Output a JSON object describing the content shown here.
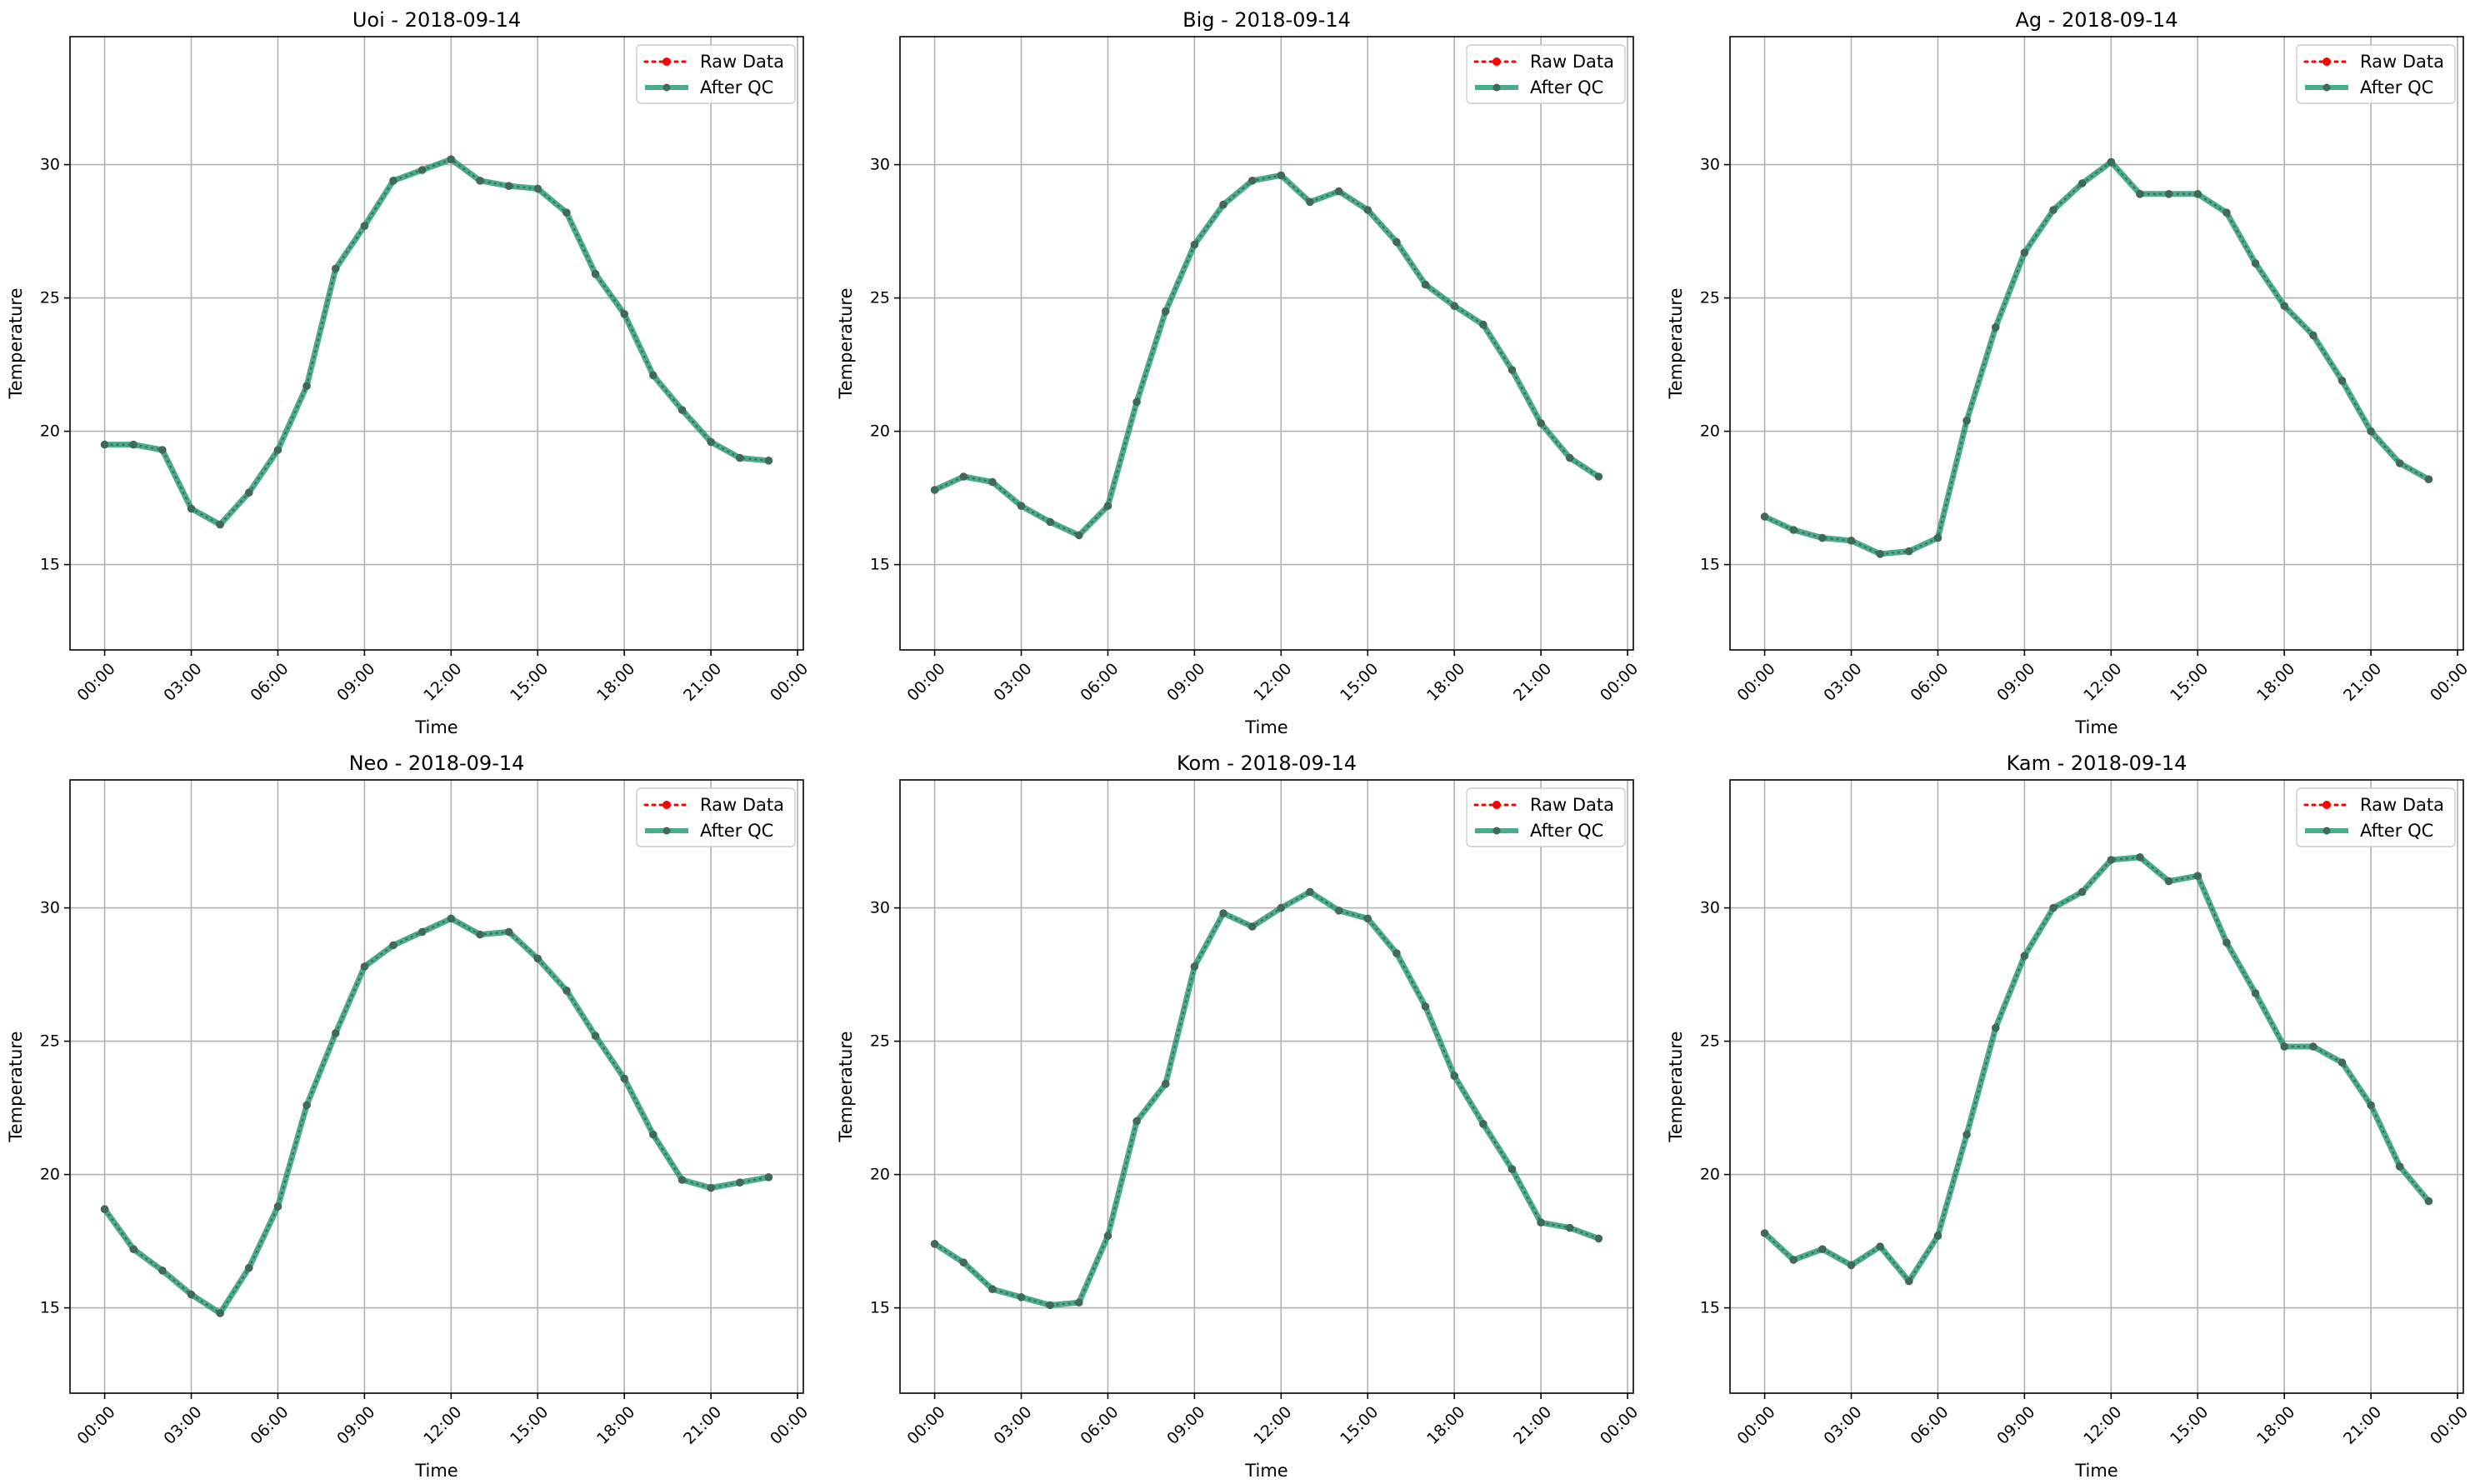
{
  "figure_date": "2018-09-14",
  "colors": {
    "raw": "#ff0000",
    "qc": "#2a9d78",
    "overlap": "#406a55",
    "grid": "#b0b0b0"
  },
  "legend": {
    "raw_label": "Raw Data",
    "qc_label": "After QC",
    "placement": "top-right"
  },
  "chart_data": [
    {
      "type": "line",
      "title": "Uoi - 2018-09-14",
      "xlabel": "Time",
      "ylabel": "Temperature",
      "xlim": [
        "2018-09-13 22:48",
        "2018-09-15 00:12"
      ],
      "ylim": [
        11.8,
        34.8
      ],
      "grid": true,
      "x_tick_labels": [
        "00:00",
        "03:00",
        "06:00",
        "09:00",
        "12:00",
        "15:00",
        "18:00",
        "21:00",
        "00:00"
      ],
      "y_tick_labels": [
        "15",
        "20",
        "25",
        "30"
      ],
      "x": [
        "00:00",
        "01:00",
        "02:00",
        "03:00",
        "04:00",
        "05:00",
        "06:00",
        "07:00",
        "08:00",
        "09:00",
        "10:00",
        "11:00",
        "12:00",
        "13:00",
        "14:00",
        "15:00",
        "16:00",
        "17:00",
        "18:00",
        "19:00",
        "20:00",
        "21:00",
        "22:00",
        "23:00"
      ],
      "series": [
        {
          "name": "Raw Data",
          "values": [
            19.5,
            19.5,
            19.3,
            17.1,
            16.5,
            17.7,
            19.3,
            21.7,
            26.1,
            27.7,
            29.4,
            29.8,
            30.2,
            29.4,
            29.2,
            29.1,
            28.2,
            25.9,
            24.4,
            22.1,
            20.8,
            19.6,
            19.0,
            18.9
          ]
        },
        {
          "name": "After QC",
          "values": [
            19.5,
            19.5,
            19.3,
            17.1,
            16.5,
            17.7,
            19.3,
            21.7,
            26.1,
            27.7,
            29.4,
            29.8,
            30.2,
            29.4,
            29.2,
            29.1,
            28.2,
            25.9,
            24.4,
            22.1,
            20.8,
            19.6,
            19.0,
            18.9
          ]
        }
      ]
    },
    {
      "type": "line",
      "title": "Big - 2018-09-14",
      "xlabel": "Time",
      "ylabel": "Temperature",
      "xlim": [
        "2018-09-13 22:48",
        "2018-09-15 00:12"
      ],
      "ylim": [
        11.8,
        34.8
      ],
      "grid": true,
      "x_tick_labels": [
        "00:00",
        "03:00",
        "06:00",
        "09:00",
        "12:00",
        "15:00",
        "18:00",
        "21:00",
        "00:00"
      ],
      "y_tick_labels": [
        "15",
        "20",
        "25",
        "30"
      ],
      "x": [
        "00:00",
        "01:00",
        "02:00",
        "03:00",
        "04:00",
        "05:00",
        "06:00",
        "07:00",
        "08:00",
        "09:00",
        "10:00",
        "11:00",
        "12:00",
        "13:00",
        "14:00",
        "15:00",
        "16:00",
        "17:00",
        "18:00",
        "19:00",
        "20:00",
        "21:00",
        "22:00",
        "23:00"
      ],
      "series": [
        {
          "name": "Raw Data",
          "values": [
            17.8,
            18.3,
            18.1,
            17.2,
            16.6,
            16.1,
            17.2,
            21.1,
            24.5,
            27.0,
            28.5,
            29.4,
            29.6,
            28.6,
            29.0,
            28.3,
            27.1,
            25.5,
            24.7,
            24.0,
            22.3,
            20.3,
            19.0,
            18.3
          ]
        },
        {
          "name": "After QC",
          "values": [
            17.8,
            18.3,
            18.1,
            17.2,
            16.6,
            16.1,
            17.2,
            21.1,
            24.5,
            27.0,
            28.5,
            29.4,
            29.6,
            28.6,
            29.0,
            28.3,
            27.1,
            25.5,
            24.7,
            24.0,
            22.3,
            20.3,
            19.0,
            18.3
          ]
        }
      ]
    },
    {
      "type": "line",
      "title": "Ag - 2018-09-14",
      "xlabel": "Time",
      "ylabel": "Temperature",
      "xlim": [
        "2018-09-13 22:48",
        "2018-09-15 00:12"
      ],
      "ylim": [
        11.8,
        34.8
      ],
      "grid": true,
      "x_tick_labels": [
        "00:00",
        "03:00",
        "06:00",
        "09:00",
        "12:00",
        "15:00",
        "18:00",
        "21:00",
        "00:00"
      ],
      "y_tick_labels": [
        "15",
        "20",
        "25",
        "30"
      ],
      "x": [
        "00:00",
        "01:00",
        "02:00",
        "03:00",
        "04:00",
        "05:00",
        "06:00",
        "07:00",
        "08:00",
        "09:00",
        "10:00",
        "11:00",
        "12:00",
        "13:00",
        "14:00",
        "15:00",
        "16:00",
        "17:00",
        "18:00",
        "19:00",
        "20:00",
        "21:00",
        "22:00",
        "23:00"
      ],
      "series": [
        {
          "name": "Raw Data",
          "values": [
            16.8,
            16.3,
            16.0,
            15.9,
            15.4,
            15.5,
            16.0,
            20.4,
            23.9,
            26.7,
            28.3,
            29.3,
            30.1,
            28.9,
            28.9,
            28.9,
            28.2,
            26.3,
            24.7,
            23.6,
            21.9,
            20.0,
            18.8,
            18.2
          ]
        },
        {
          "name": "After QC",
          "values": [
            16.8,
            16.3,
            16.0,
            15.9,
            15.4,
            15.5,
            16.0,
            20.4,
            23.9,
            26.7,
            28.3,
            29.3,
            30.1,
            28.9,
            28.9,
            28.9,
            28.2,
            26.3,
            24.7,
            23.6,
            21.9,
            20.0,
            18.8,
            18.2
          ]
        }
      ]
    },
    {
      "type": "line",
      "title": "Neo - 2018-09-14",
      "xlabel": "Time",
      "ylabel": "Temperature",
      "xlim": [
        "2018-09-13 22:48",
        "2018-09-15 00:12"
      ],
      "ylim": [
        11.8,
        34.8
      ],
      "grid": true,
      "x_tick_labels": [
        "00:00",
        "03:00",
        "06:00",
        "09:00",
        "12:00",
        "15:00",
        "18:00",
        "21:00",
        "00:00"
      ],
      "y_tick_labels": [
        "15",
        "20",
        "25",
        "30"
      ],
      "x": [
        "00:00",
        "01:00",
        "02:00",
        "03:00",
        "04:00",
        "05:00",
        "06:00",
        "07:00",
        "08:00",
        "09:00",
        "10:00",
        "11:00",
        "12:00",
        "13:00",
        "14:00",
        "15:00",
        "16:00",
        "17:00",
        "18:00",
        "19:00",
        "20:00",
        "21:00",
        "22:00",
        "23:00"
      ],
      "series": [
        {
          "name": "Raw Data",
          "values": [
            18.7,
            17.2,
            16.4,
            15.5,
            14.8,
            16.5,
            18.8,
            22.6,
            25.3,
            27.8,
            28.6,
            29.1,
            29.6,
            29.0,
            29.1,
            28.1,
            26.9,
            25.2,
            23.6,
            21.5,
            19.8,
            19.5,
            19.7,
            19.9
          ]
        },
        {
          "name": "After QC",
          "values": [
            18.7,
            17.2,
            16.4,
            15.5,
            14.8,
            16.5,
            18.8,
            22.6,
            25.3,
            27.8,
            28.6,
            29.1,
            29.6,
            29.0,
            29.1,
            28.1,
            26.9,
            25.2,
            23.6,
            21.5,
            19.8,
            19.5,
            19.7,
            19.9
          ]
        }
      ]
    },
    {
      "type": "line",
      "title": "Kom - 2018-09-14",
      "xlabel": "Time",
      "ylabel": "Temperature",
      "xlim": [
        "2018-09-13 22:48",
        "2018-09-15 00:12"
      ],
      "ylim": [
        11.8,
        34.8
      ],
      "grid": true,
      "x_tick_labels": [
        "00:00",
        "03:00",
        "06:00",
        "09:00",
        "12:00",
        "15:00",
        "18:00",
        "21:00",
        "00:00"
      ],
      "y_tick_labels": [
        "15",
        "20",
        "25",
        "30"
      ],
      "x": [
        "00:00",
        "01:00",
        "02:00",
        "03:00",
        "04:00",
        "05:00",
        "06:00",
        "07:00",
        "08:00",
        "09:00",
        "10:00",
        "11:00",
        "12:00",
        "13:00",
        "14:00",
        "15:00",
        "16:00",
        "17:00",
        "18:00",
        "19:00",
        "20:00",
        "21:00",
        "22:00",
        "23:00"
      ],
      "series": [
        {
          "name": "Raw Data",
          "values": [
            17.4,
            16.7,
            15.7,
            15.4,
            15.1,
            15.2,
            17.7,
            22.0,
            23.4,
            27.8,
            29.8,
            29.3,
            30.0,
            30.6,
            29.9,
            29.6,
            28.3,
            26.3,
            23.7,
            21.9,
            20.2,
            18.2,
            18.0,
            17.6
          ]
        },
        {
          "name": "After QC",
          "values": [
            17.4,
            16.7,
            15.7,
            15.4,
            15.1,
            15.2,
            17.7,
            22.0,
            23.4,
            27.8,
            29.8,
            29.3,
            30.0,
            30.6,
            29.9,
            29.6,
            28.3,
            26.3,
            23.7,
            21.9,
            20.2,
            18.2,
            18.0,
            17.6
          ]
        }
      ]
    },
    {
      "type": "line",
      "title": "Kam - 2018-09-14",
      "xlabel": "Time",
      "ylabel": "Temperature",
      "xlim": [
        "2018-09-13 22:48",
        "2018-09-15 00:12"
      ],
      "ylim": [
        11.8,
        34.8
      ],
      "grid": true,
      "x_tick_labels": [
        "00:00",
        "03:00",
        "06:00",
        "09:00",
        "12:00",
        "15:00",
        "18:00",
        "21:00",
        "00:00"
      ],
      "y_tick_labels": [
        "15",
        "20",
        "25",
        "30"
      ],
      "x": [
        "00:00",
        "01:00",
        "02:00",
        "03:00",
        "04:00",
        "05:00",
        "06:00",
        "07:00",
        "08:00",
        "09:00",
        "10:00",
        "11:00",
        "12:00",
        "13:00",
        "14:00",
        "15:00",
        "16:00",
        "17:00",
        "18:00",
        "19:00",
        "20:00",
        "21:00",
        "22:00",
        "23:00"
      ],
      "series": [
        {
          "name": "Raw Data",
          "values": [
            17.8,
            16.8,
            17.2,
            16.6,
            17.3,
            16.0,
            17.7,
            21.5,
            25.5,
            28.2,
            30.0,
            30.6,
            31.8,
            31.9,
            31.0,
            31.2,
            28.7,
            26.8,
            24.8,
            24.8,
            24.2,
            22.6,
            20.3,
            19.0
          ]
        },
        {
          "name": "After QC",
          "values": [
            17.8,
            16.8,
            17.2,
            16.6,
            17.3,
            16.0,
            17.7,
            21.5,
            25.5,
            28.2,
            30.0,
            30.6,
            31.8,
            31.9,
            31.0,
            31.2,
            28.7,
            26.8,
            24.8,
            24.8,
            24.2,
            22.6,
            20.3,
            19.0
          ]
        }
      ]
    }
  ]
}
